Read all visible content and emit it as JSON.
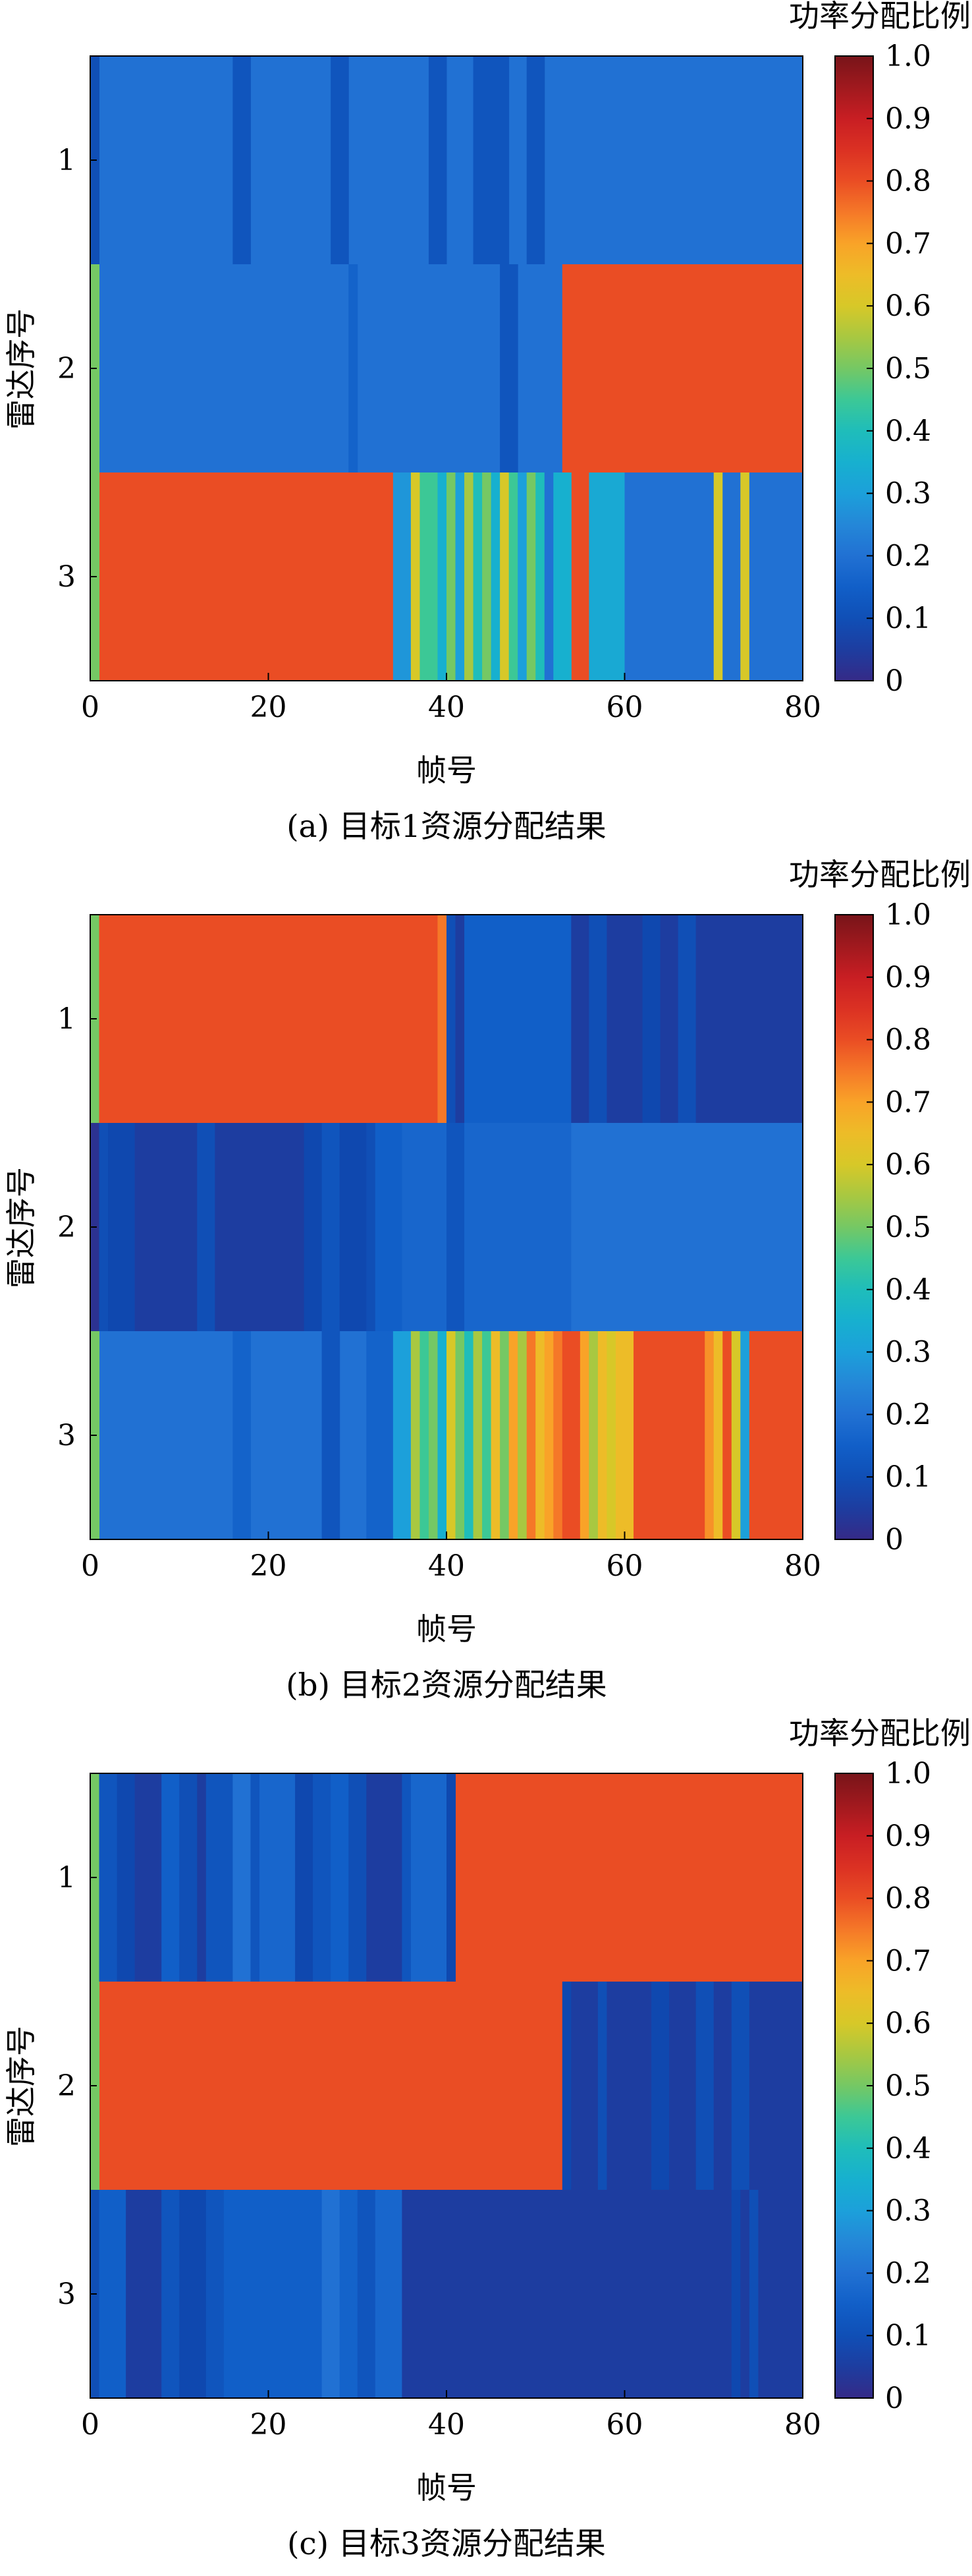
{
  "chart_data": [
    {
      "type": "heatmap",
      "caption": "(a) 目标1资源分配结果",
      "xlabel": "帧号",
      "ylabel": "雷达序号",
      "colorbar_label": "功率分配比例",
      "x_range": [
        0,
        80
      ],
      "x_ticks": [
        "0",
        "20",
        "40",
        "60",
        "80"
      ],
      "y_categories": [
        "1",
        "2",
        "3"
      ],
      "clim": [
        0,
        1
      ],
      "colorbar_ticks": [
        "0",
        "0.1",
        "0.2",
        "0.3",
        "0.4",
        "0.5",
        "0.6",
        "0.7",
        "0.8",
        "0.9",
        "1.0"
      ],
      "rows": [
        {
          "radar": "1",
          "base": 0.2,
          "runs": [
            [
              0,
              1,
              0.1
            ],
            [
              16,
              18,
              0.12
            ],
            [
              27,
              29,
              0.12
            ],
            [
              38,
              40,
              0.12
            ],
            [
              43,
              47,
              0.12
            ],
            [
              49,
              51,
              0.12
            ]
          ]
        },
        {
          "radar": "2",
          "base": 0.2,
          "runs": [
            [
              0,
              1,
              0.5
            ],
            [
              29,
              30,
              0.16
            ],
            [
              46,
              48,
              0.12
            ],
            [
              53,
              80,
              0.8
            ]
          ]
        },
        {
          "radar": "3",
          "base": 0.8,
          "runs": [
            [
              0,
              1,
              0.5
            ],
            [
              34,
              36,
              0.28
            ],
            [
              36,
              37,
              0.6
            ],
            [
              37,
              39,
              0.45
            ],
            [
              39,
              40,
              0.35
            ],
            [
              40,
              41,
              0.5
            ],
            [
              41,
              42,
              0.3
            ],
            [
              42,
              43,
              0.55
            ],
            [
              43,
              44,
              0.4
            ],
            [
              44,
              45,
              0.5
            ],
            [
              45,
              46,
              0.35
            ],
            [
              46,
              47,
              0.6
            ],
            [
              47,
              48,
              0.45
            ],
            [
              48,
              49,
              0.3
            ],
            [
              49,
              50,
              0.5
            ],
            [
              50,
              51,
              0.4
            ],
            [
              51,
              52,
              0.2
            ],
            [
              52,
              54,
              0.35
            ],
            [
              55,
              56,
              0.8
            ],
            [
              56,
              60,
              0.33
            ],
            [
              60,
              70,
              0.2
            ],
            [
              70,
              71,
              0.6
            ],
            [
              71,
              73,
              0.2
            ],
            [
              73,
              74,
              0.6
            ],
            [
              74,
              80,
              0.2
            ]
          ]
        }
      ]
    },
    {
      "type": "heatmap",
      "caption": "(b) 目标2资源分配结果",
      "xlabel": "帧号",
      "ylabel": "雷达序号",
      "colorbar_label": "功率分配比例",
      "x_range": [
        0,
        80
      ],
      "x_ticks": [
        "0",
        "20",
        "40",
        "60",
        "80"
      ],
      "y_categories": [
        "1",
        "2",
        "3"
      ],
      "clim": [
        0,
        1
      ],
      "colorbar_ticks": [
        "0",
        "0.1",
        "0.2",
        "0.3",
        "0.4",
        "0.5",
        "0.6",
        "0.7",
        "0.8",
        "0.9",
        "1.0"
      ],
      "rows": [
        {
          "radar": "1",
          "base": 0.05,
          "runs": [
            [
              0,
              1,
              0.5
            ],
            [
              1,
              39,
              0.8
            ],
            [
              39,
              40,
              0.75
            ],
            [
              40,
              41,
              0.1
            ],
            [
              41,
              42,
              0.05
            ],
            [
              42,
              54,
              0.15
            ],
            [
              54,
              56,
              0.05
            ],
            [
              56,
              58,
              0.1
            ],
            [
              58,
              62,
              0.05
            ],
            [
              62,
              64,
              0.08
            ],
            [
              64,
              66,
              0.05
            ],
            [
              66,
              68,
              0.1
            ],
            [
              68,
              80,
              0.05
            ]
          ]
        },
        {
          "radar": "2",
          "base": 0.05,
          "runs": [
            [
              0,
              1,
              0.02
            ],
            [
              1,
              2,
              0.1
            ],
            [
              2,
              5,
              0.08
            ],
            [
              5,
              12,
              0.05
            ],
            [
              12,
              14,
              0.1
            ],
            [
              14,
              24,
              0.05
            ],
            [
              24,
              26,
              0.08
            ],
            [
              26,
              28,
              0.12
            ],
            [
              28,
              31,
              0.08
            ],
            [
              31,
              32,
              0.1
            ],
            [
              32,
              35,
              0.15
            ],
            [
              35,
              40,
              0.17
            ],
            [
              40,
              42,
              0.12
            ],
            [
              42,
              54,
              0.17
            ],
            [
              54,
              80,
              0.2
            ]
          ]
        },
        {
          "radar": "3",
          "base": 0.2,
          "runs": [
            [
              0,
              1,
              0.5
            ],
            [
              16,
              18,
              0.16
            ],
            [
              26,
              28,
              0.12
            ],
            [
              31,
              34,
              0.16
            ],
            [
              34,
              36,
              0.3
            ],
            [
              36,
              37,
              0.55
            ],
            [
              37,
              38,
              0.45
            ],
            [
              38,
              39,
              0.5
            ],
            [
              39,
              40,
              0.35
            ],
            [
              40,
              41,
              0.6
            ],
            [
              41,
              42,
              0.5
            ],
            [
              42,
              43,
              0.4
            ],
            [
              43,
              44,
              0.55
            ],
            [
              44,
              45,
              0.45
            ],
            [
              45,
              46,
              0.65
            ],
            [
              46,
              47,
              0.5
            ],
            [
              47,
              48,
              0.7
            ],
            [
              48,
              49,
              0.55
            ],
            [
              49,
              50,
              0.75
            ],
            [
              50,
              51,
              0.65
            ],
            [
              51,
              52,
              0.7
            ],
            [
              52,
              53,
              0.75
            ],
            [
              53,
              55,
              0.8
            ],
            [
              55,
              56,
              0.7
            ],
            [
              56,
              57,
              0.55
            ],
            [
              57,
              58,
              0.65
            ],
            [
              58,
              59,
              0.6
            ],
            [
              59,
              61,
              0.65
            ],
            [
              61,
              69,
              0.8
            ],
            [
              69,
              70,
              0.72
            ],
            [
              70,
              71,
              0.65
            ],
            [
              71,
              72,
              0.8
            ],
            [
              72,
              73,
              0.6
            ],
            [
              73,
              74,
              0.3
            ],
            [
              74,
              80,
              0.8
            ]
          ]
        }
      ]
    },
    {
      "type": "heatmap",
      "caption": "(c) 目标3资源分配结果",
      "xlabel": "帧号",
      "ylabel": "雷达序号",
      "colorbar_label": "功率分配比例",
      "x_range": [
        0,
        80
      ],
      "x_ticks": [
        "0",
        "20",
        "40",
        "60",
        "80"
      ],
      "y_categories": [
        "1",
        "2",
        "3"
      ],
      "clim": [
        0,
        1
      ],
      "colorbar_ticks": [
        "0",
        "0.1",
        "0.2",
        "0.3",
        "0.4",
        "0.5",
        "0.6",
        "0.7",
        "0.8",
        "0.9",
        "1.0"
      ],
      "rows": [
        {
          "radar": "1",
          "base": 0.8,
          "runs": [
            [
              0,
              1,
              0.5
            ],
            [
              1,
              3,
              0.12
            ],
            [
              3,
              5,
              0.08
            ],
            [
              5,
              8,
              0.05
            ],
            [
              8,
              10,
              0.15
            ],
            [
              10,
              12,
              0.1
            ],
            [
              12,
              13,
              0.05
            ],
            [
              13,
              16,
              0.12
            ],
            [
              16,
              18,
              0.2
            ],
            [
              18,
              19,
              0.12
            ],
            [
              19,
              23,
              0.17
            ],
            [
              23,
              25,
              0.08
            ],
            [
              25,
              27,
              0.12
            ],
            [
              27,
              29,
              0.15
            ],
            [
              29,
              31,
              0.1
            ],
            [
              31,
              35,
              0.05
            ],
            [
              35,
              36,
              0.12
            ],
            [
              36,
              40,
              0.17
            ],
            [
              40,
              41,
              0.08
            ]
          ]
        },
        {
          "radar": "2",
          "base": 0.8,
          "runs": [
            [
              0,
              1,
              0.5
            ],
            [
              53,
              54,
              0.08
            ],
            [
              54,
              57,
              0.05
            ],
            [
              57,
              58,
              0.1
            ],
            [
              58,
              63,
              0.05
            ],
            [
              63,
              65,
              0.08
            ],
            [
              65,
              68,
              0.05
            ],
            [
              68,
              70,
              0.1
            ],
            [
              70,
              72,
              0.05
            ],
            [
              72,
              74,
              0.1
            ],
            [
              74,
              80,
              0.05
            ]
          ]
        },
        {
          "radar": "3",
          "base": 0.05,
          "runs": [
            [
              0,
              1,
              0.1
            ],
            [
              1,
              4,
              0.15
            ],
            [
              4,
              8,
              0.05
            ],
            [
              8,
              10,
              0.12
            ],
            [
              10,
              13,
              0.08
            ],
            [
              13,
              15,
              0.12
            ],
            [
              15,
              26,
              0.15
            ],
            [
              26,
              28,
              0.2
            ],
            [
              28,
              30,
              0.16
            ],
            [
              30,
              32,
              0.12
            ],
            [
              32,
              35,
              0.17
            ],
            [
              35,
              72,
              0.05
            ],
            [
              72,
              73,
              0.08
            ],
            [
              73,
              74,
              0.05
            ],
            [
              74,
              75,
              0.1
            ],
            [
              75,
              80,
              0.05
            ]
          ]
        }
      ]
    }
  ]
}
